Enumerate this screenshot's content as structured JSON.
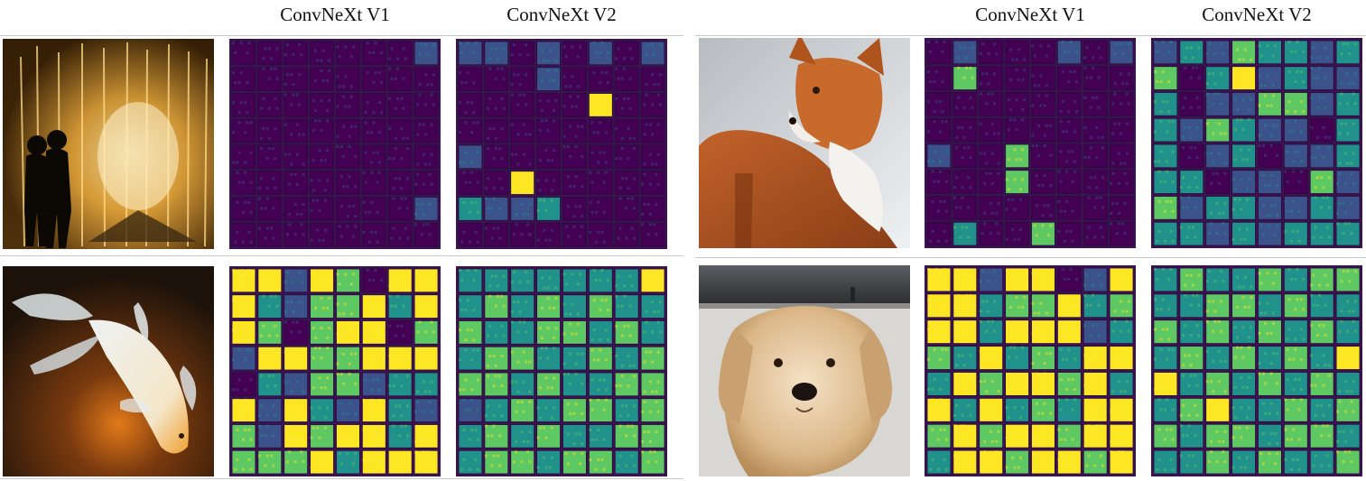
{
  "headers": {
    "left_v1": "ConvNeXt V1",
    "left_v2": "ConvNeXt V2",
    "right_v1": "ConvNeXt V1",
    "right_v2": "ConvNeXt V2"
  },
  "images": [
    {
      "name": "fountain-couple-image"
    },
    {
      "name": "koi-fish-image"
    },
    {
      "name": "fox-image"
    },
    {
      "name": "golden-retriever-image"
    }
  ],
  "colormap": [
    "#440154",
    "#3b528b",
    "#21918c",
    "#5ec962",
    "#fde725"
  ],
  "feature_maps": [
    {
      "name": "fountain-v1-feature-map",
      "grid": [
        [
          0,
          0,
          0,
          0,
          0,
          0,
          0,
          1
        ],
        [
          0,
          0,
          0,
          0,
          0,
          0,
          0,
          0
        ],
        [
          0,
          0,
          0,
          0,
          0,
          0,
          0,
          0
        ],
        [
          0,
          0,
          0,
          0,
          0,
          0,
          0,
          0
        ],
        [
          0,
          0,
          0,
          0,
          0,
          0,
          0,
          0
        ],
        [
          0,
          0,
          0,
          0,
          0,
          0,
          0,
          0
        ],
        [
          0,
          0,
          0,
          0,
          0,
          0,
          0,
          1
        ],
        [
          0,
          0,
          0,
          0,
          0,
          0,
          0,
          0
        ]
      ]
    },
    {
      "name": "fountain-v2-feature-map",
      "grid": [
        [
          1,
          1,
          0,
          1,
          0,
          1,
          0,
          1
        ],
        [
          0,
          0,
          0,
          1,
          0,
          0,
          0,
          0
        ],
        [
          0,
          0,
          0,
          0,
          0,
          4,
          0,
          0
        ],
        [
          0,
          0,
          0,
          0,
          0,
          0,
          0,
          0
        ],
        [
          1,
          0,
          0,
          0,
          0,
          0,
          0,
          0
        ],
        [
          0,
          0,
          4,
          0,
          0,
          0,
          0,
          0
        ],
        [
          2,
          1,
          1,
          2,
          0,
          0,
          0,
          0
        ],
        [
          0,
          0,
          0,
          0,
          0,
          0,
          0,
          0
        ]
      ]
    },
    {
      "name": "koi-v1-feature-map",
      "grid": [
        [
          4,
          4,
          1,
          4,
          3,
          0,
          4,
          4
        ],
        [
          4,
          2,
          1,
          3,
          3,
          4,
          2,
          4
        ],
        [
          4,
          3,
          0,
          3,
          4,
          4,
          0,
          3
        ],
        [
          1,
          4,
          4,
          3,
          3,
          4,
          4,
          4
        ],
        [
          0,
          2,
          1,
          3,
          3,
          1,
          2,
          2
        ],
        [
          4,
          1,
          4,
          2,
          1,
          4,
          2,
          1
        ],
        [
          3,
          1,
          4,
          3,
          4,
          4,
          2,
          4
        ],
        [
          3,
          3,
          3,
          4,
          2,
          4,
          4,
          4
        ]
      ]
    },
    {
      "name": "koi-v2-feature-map",
      "grid": [
        [
          2,
          2,
          2,
          2,
          2,
          2,
          2,
          4
        ],
        [
          2,
          3,
          2,
          3,
          2,
          3,
          2,
          2
        ],
        [
          3,
          2,
          2,
          3,
          3,
          2,
          3,
          2
        ],
        [
          2,
          3,
          3,
          2,
          2,
          3,
          2,
          3
        ],
        [
          3,
          3,
          2,
          3,
          2,
          2,
          3,
          3
        ],
        [
          1,
          2,
          3,
          2,
          3,
          3,
          2,
          3
        ],
        [
          2,
          3,
          2,
          3,
          2,
          2,
          3,
          3
        ],
        [
          2,
          3,
          3,
          2,
          3,
          3,
          2,
          3
        ]
      ]
    },
    {
      "name": "fox-v1-feature-map",
      "grid": [
        [
          0,
          1,
          0,
          0,
          0,
          1,
          0,
          1
        ],
        [
          0,
          3,
          0,
          0,
          0,
          0,
          0,
          0
        ],
        [
          0,
          0,
          0,
          0,
          0,
          0,
          0,
          0
        ],
        [
          0,
          0,
          0,
          0,
          0,
          0,
          0,
          0
        ],
        [
          1,
          0,
          0,
          3,
          0,
          0,
          0,
          0
        ],
        [
          0,
          0,
          0,
          3,
          0,
          0,
          0,
          0
        ],
        [
          0,
          0,
          0,
          0,
          0,
          0,
          0,
          0
        ],
        [
          0,
          2,
          0,
          0,
          3,
          0,
          0,
          0
        ]
      ]
    },
    {
      "name": "fox-v2-feature-map",
      "grid": [
        [
          1,
          2,
          1,
          3,
          2,
          2,
          1,
          2
        ],
        [
          3,
          0,
          2,
          4,
          1,
          2,
          1,
          1
        ],
        [
          2,
          0,
          1,
          1,
          3,
          3,
          1,
          2
        ],
        [
          2,
          1,
          3,
          2,
          1,
          1,
          0,
          2
        ],
        [
          2,
          0,
          1,
          2,
          0,
          1,
          1,
          2
        ],
        [
          2,
          2,
          0,
          1,
          1,
          0,
          3,
          1
        ],
        [
          3,
          1,
          2,
          2,
          1,
          1,
          2,
          1
        ],
        [
          2,
          2,
          1,
          2,
          1,
          2,
          2,
          2
        ]
      ]
    },
    {
      "name": "dog-v1-feature-map",
      "grid": [
        [
          4,
          4,
          1,
          4,
          4,
          0,
          1,
          4
        ],
        [
          4,
          4,
          2,
          3,
          3,
          4,
          2,
          3
        ],
        [
          4,
          4,
          2,
          4,
          4,
          4,
          1,
          2
        ],
        [
          3,
          2,
          4,
          2,
          3,
          2,
          4,
          4
        ],
        [
          2,
          4,
          3,
          4,
          4,
          3,
          4,
          2
        ],
        [
          4,
          2,
          4,
          2,
          3,
          2,
          4,
          4
        ],
        [
          3,
          4,
          3,
          4,
          4,
          3,
          4,
          4
        ],
        [
          2,
          4,
          4,
          3,
          4,
          4,
          3,
          4
        ]
      ]
    },
    {
      "name": "dog-v2-feature-map",
      "grid": [
        [
          2,
          3,
          2,
          2,
          3,
          2,
          3,
          3
        ],
        [
          2,
          2,
          3,
          3,
          2,
          3,
          2,
          2
        ],
        [
          3,
          2,
          3,
          2,
          3,
          2,
          3,
          2
        ],
        [
          2,
          3,
          2,
          3,
          2,
          3,
          2,
          4
        ],
        [
          4,
          2,
          3,
          2,
          3,
          2,
          3,
          2
        ],
        [
          2,
          3,
          4,
          2,
          2,
          3,
          2,
          3
        ],
        [
          3,
          2,
          3,
          3,
          2,
          3,
          3,
          2
        ],
        [
          2,
          2,
          3,
          2,
          3,
          2,
          2,
          3
        ]
      ]
    }
  ]
}
